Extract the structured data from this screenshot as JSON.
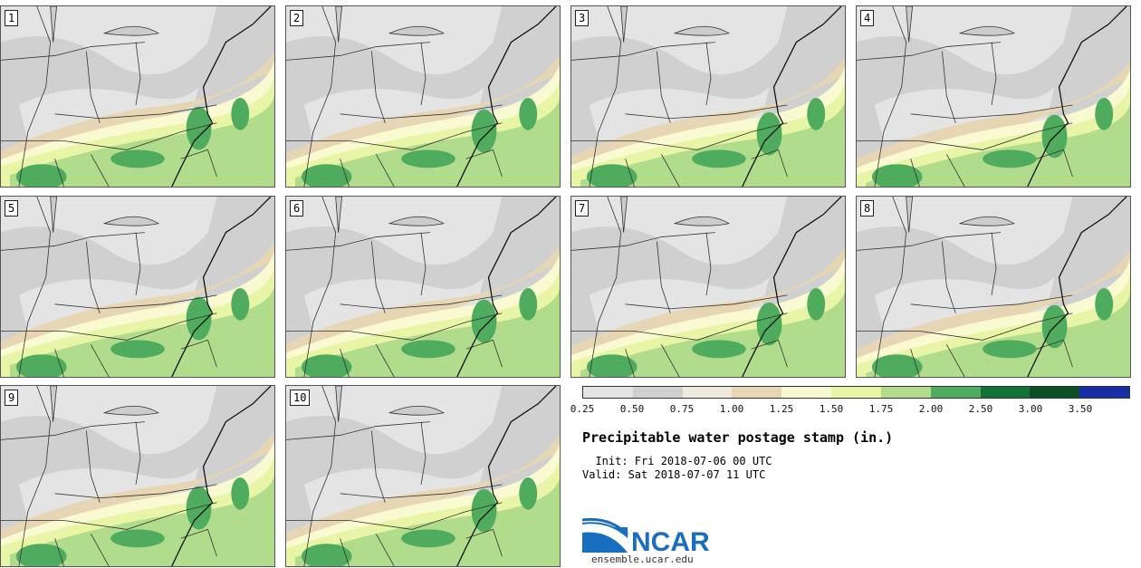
{
  "panels": [
    "1",
    "2",
    "3",
    "4",
    "5",
    "6",
    "7",
    "8",
    "9",
    "10"
  ],
  "legend": {
    "colors": [
      "#e4e4e4",
      "#d0d0d0",
      "#efeadb",
      "#e6d6b4",
      "#fafad2",
      "#e9f5a6",
      "#b1dc8c",
      "#4fac5e",
      "#137235",
      "#0a4f26",
      "#1a2da8"
    ],
    "ticks": [
      "0.25",
      "0.50",
      "0.75",
      "1.00",
      "1.25",
      "1.50",
      "1.75",
      "2.00",
      "2.50",
      "3.00",
      "3.50"
    ]
  },
  "title": "Precipitable water postage stamp (in.)",
  "init_line": "  Init: Fri 2018-07-06 00 UTC",
  "valid_line": "Valid: Sat 2018-07-07 11 UTC",
  "logo": {
    "text": "NCAR",
    "color": "#1a6ec0"
  },
  "site": "ensemble.ucar.edu"
}
